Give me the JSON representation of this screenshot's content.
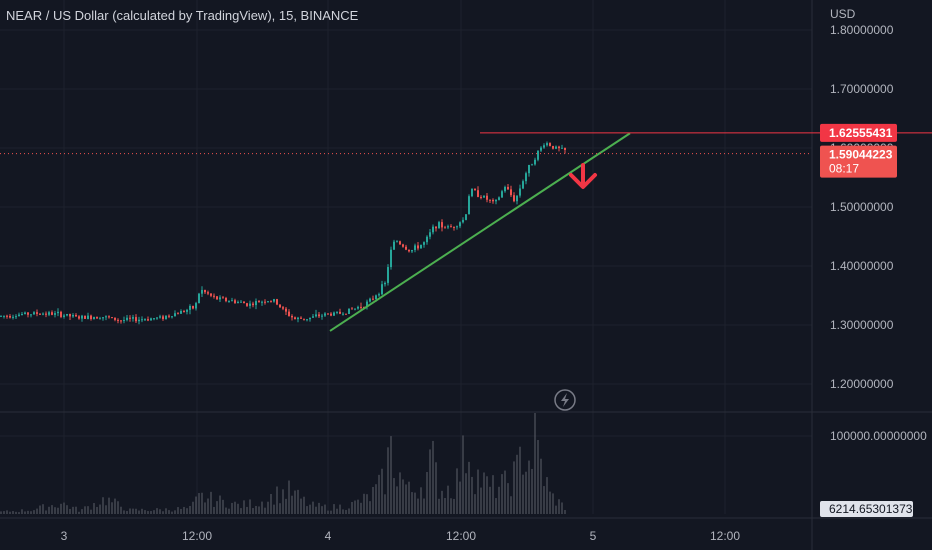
{
  "header": {
    "title": "NEAR / US Dollar (calculated by TradingView), 15, BINANCE"
  },
  "colors": {
    "background": "#131722",
    "grid": "#1e222d",
    "up": "#26a69a",
    "down": "#ef5350",
    "trendline": "#4caf50",
    "resistance": "#f23645",
    "arrow": "#f23645",
    "text": "#b2b5be"
  },
  "icons": {
    "lightning": "lightning-bolt-icon",
    "arrow": "arrow-down-icon"
  },
  "chart_data": {
    "type": "candlestick",
    "currency_label": "USD",
    "price_axis_ticks": [
      "1.80000000",
      "1.70000000",
      "1.60000000",
      "1.50000000",
      "1.40000000",
      "1.30000000",
      "1.20000000"
    ],
    "price_ticks_values": [
      1.8,
      1.7,
      1.6,
      1.5,
      1.4,
      1.3,
      1.2
    ],
    "ylim": [
      1.14,
      1.83
    ],
    "time_axis_ticks": [
      "3",
      "12:00",
      "4",
      "12:00",
      "5",
      "12:00"
    ],
    "volume_axis_ticks": [
      "100000.00000000"
    ],
    "resistance_label": "1.62555431",
    "resistance_value": 1.62555431,
    "last_price_label": "1.59044223",
    "last_price_value": 1.59044223,
    "countdown": "08:17",
    "volume_last_label": "6214.65301373",
    "price_path": [
      [
        0,
        1.315
      ],
      [
        20,
        1.318
      ],
      [
        40,
        1.32
      ],
      [
        60,
        1.318
      ],
      [
        80,
        1.312
      ],
      [
        100,
        1.315
      ],
      [
        120,
        1.308
      ],
      [
        140,
        1.31
      ],
      [
        160,
        1.312
      ],
      [
        180,
        1.322
      ],
      [
        195,
        1.33
      ],
      [
        200,
        1.36
      ],
      [
        215,
        1.345
      ],
      [
        235,
        1.34
      ],
      [
        250,
        1.335
      ],
      [
        265,
        1.342
      ],
      [
        275,
        1.34
      ],
      [
        285,
        1.322
      ],
      [
        295,
        1.31
      ],
      [
        310,
        1.312
      ],
      [
        325,
        1.318
      ],
      [
        340,
        1.32
      ],
      [
        355,
        1.328
      ],
      [
        370,
        1.34
      ],
      [
        385,
        1.37
      ],
      [
        390,
        1.42
      ],
      [
        395,
        1.445
      ],
      [
        410,
        1.425
      ],
      [
        425,
        1.44
      ],
      [
        435,
        1.47
      ],
      [
        450,
        1.465
      ],
      [
        465,
        1.48
      ],
      [
        470,
        1.53
      ],
      [
        480,
        1.52
      ],
      [
        495,
        1.505
      ],
      [
        505,
        1.535
      ],
      [
        515,
        1.51
      ],
      [
        525,
        1.555
      ],
      [
        535,
        1.585
      ],
      [
        545,
        1.61
      ],
      [
        555,
        1.6
      ],
      [
        565,
        1.595
      ]
    ],
    "volume_profile": [
      [
        0,
        500
      ],
      [
        30,
        900
      ],
      [
        62,
        2500
      ],
      [
        80,
        800
      ],
      [
        105,
        3500
      ],
      [
        130,
        900
      ],
      [
        160,
        1000
      ],
      [
        190,
        1300
      ],
      [
        200,
        4000
      ],
      [
        240,
        2000
      ],
      [
        265,
        3000
      ],
      [
        275,
        4500
      ],
      [
        290,
        5300
      ],
      [
        310,
        2000
      ],
      [
        330,
        1500
      ],
      [
        350,
        2000
      ],
      [
        370,
        4000
      ],
      [
        385,
        8000
      ],
      [
        390,
        15500
      ],
      [
        395,
        11000
      ],
      [
        410,
        5000
      ],
      [
        425,
        7500
      ],
      [
        432,
        13000
      ],
      [
        440,
        5500
      ],
      [
        455,
        6500
      ],
      [
        468,
        16500
      ],
      [
        475,
        9500
      ],
      [
        490,
        6000
      ],
      [
        505,
        6800
      ],
      [
        518,
        10000
      ],
      [
        522,
        15000
      ],
      [
        530,
        12000
      ],
      [
        535,
        17000
      ],
      [
        542,
        10500
      ],
      [
        550,
        4500
      ],
      [
        565,
        1500
      ]
    ],
    "volume_max": 17000,
    "trendline": [
      [
        330,
        1.29
      ],
      [
        630,
        1.625
      ]
    ],
    "resistance_line_x": [
      480,
      932
    ]
  }
}
